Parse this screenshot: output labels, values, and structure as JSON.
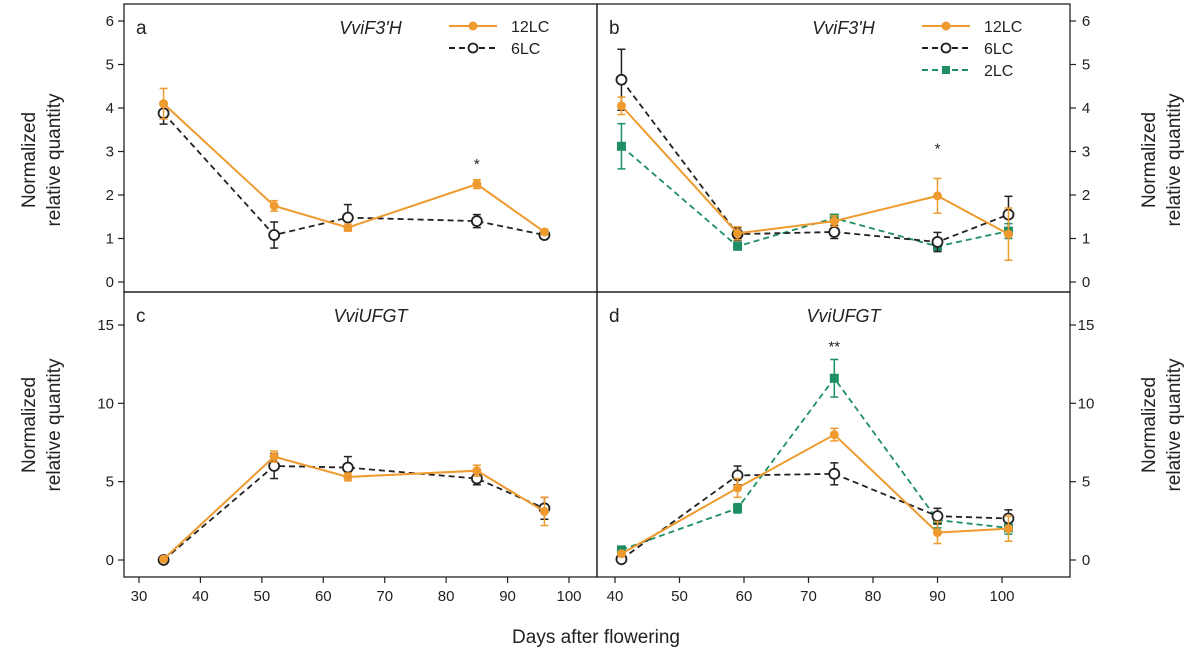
{
  "figure": {
    "xlabel": "Days after flowering",
    "ylabel_line1": "Normalized",
    "ylabel_line2": "relative quantity"
  },
  "colors": {
    "12LC": "#EE9A2E",
    "6LC": "#222222",
    "2LC": "#1E8F63"
  },
  "chart_data": [
    {
      "panel": "a",
      "type": "line",
      "title": "VviF3'H",
      "xlim": [
        30,
        104
      ],
      "ylim": [
        0,
        6
      ],
      "xticks": [],
      "yticks": [
        0,
        1,
        2,
        3,
        4,
        5,
        6
      ],
      "legend": [
        "12LC",
        "6LC"
      ],
      "series": [
        {
          "name": "12LC",
          "x": [
            34,
            52,
            64,
            85,
            96
          ],
          "y": [
            4.1,
            1.75,
            1.25,
            2.25,
            1.15
          ],
          "err": [
            0.35,
            0.12,
            0.08,
            0.1,
            0.06
          ]
        },
        {
          "name": "6LC",
          "x": [
            34,
            52,
            64,
            85,
            96
          ],
          "y": [
            3.88,
            1.08,
            1.48,
            1.4,
            1.08
          ],
          "err": [
            0.25,
            0.3,
            0.3,
            0.15,
            0.06
          ]
        }
      ],
      "annotations": [
        {
          "text": "*",
          "x": 85,
          "y": 2.6
        }
      ]
    },
    {
      "panel": "b",
      "type": "line",
      "title": "VviF3'H",
      "xlim": [
        37,
        106
      ],
      "ylim": [
        0,
        6
      ],
      "xticks": [],
      "yticks": [
        0,
        1,
        2,
        3,
        4,
        5,
        6
      ],
      "legend": [
        "12LC",
        "6LC",
        "2LC"
      ],
      "series": [
        {
          "name": "12LC",
          "x": [
            41,
            59,
            74,
            90,
            101
          ],
          "y": [
            4.05,
            1.12,
            1.4,
            1.98,
            1.1
          ],
          "err": [
            0.2,
            0.15,
            0.12,
            0.4,
            0.6
          ]
        },
        {
          "name": "6LC",
          "x": [
            41,
            59,
            74,
            90,
            101
          ],
          "y": [
            4.65,
            1.1,
            1.15,
            0.92,
            1.55
          ],
          "err": [
            0.7,
            0.15,
            0.15,
            0.22,
            0.42
          ]
        },
        {
          "name": "2LC",
          "x": [
            41,
            59,
            74,
            90,
            101
          ],
          "y": [
            3.12,
            0.82,
            1.47,
            0.82,
            1.17
          ],
          "err": [
            0.52,
            0.07,
            0.06,
            0.12,
            0.17
          ]
        }
      ],
      "annotations": [
        {
          "text": "*",
          "x": 90,
          "y": 2.95
        }
      ]
    },
    {
      "panel": "c",
      "type": "line",
      "title": "VviUFGT",
      "xlim": [
        30,
        104
      ],
      "ylim": [
        0,
        17
      ],
      "xticks": [
        30,
        40,
        50,
        60,
        70,
        80,
        90,
        100
      ],
      "yticks": [
        0,
        5,
        10,
        15
      ],
      "legend": [],
      "series": [
        {
          "name": "12LC",
          "x": [
            34,
            52,
            64,
            85,
            96
          ],
          "y": [
            0.05,
            6.6,
            5.3,
            5.7,
            3.1
          ],
          "err": [
            0.05,
            0.35,
            0.25,
            0.35,
            0.9
          ]
        },
        {
          "name": "6LC",
          "x": [
            34,
            52,
            64,
            85,
            96
          ],
          "y": [
            0.0,
            6.0,
            5.9,
            5.2,
            3.3
          ],
          "err": [
            0.05,
            0.8,
            0.7,
            0.4,
            0.7
          ]
        }
      ],
      "annotations": []
    },
    {
      "panel": "d",
      "type": "line",
      "title": "VviUFGT",
      "xlim": [
        37,
        106
      ],
      "ylim": [
        0,
        17
      ],
      "xticks": [
        40,
        50,
        60,
        70,
        80,
        90,
        100
      ],
      "yticks": [
        0,
        5,
        10,
        15
      ],
      "legend": [],
      "series": [
        {
          "name": "12LC",
          "x": [
            41,
            59,
            74,
            90,
            101
          ],
          "y": [
            0.4,
            4.6,
            8.0,
            1.75,
            2.0
          ],
          "err": [
            0.1,
            0.6,
            0.4,
            0.7,
            0.8
          ]
        },
        {
          "name": "6LC",
          "x": [
            41,
            59,
            74,
            90,
            101
          ],
          "y": [
            0.05,
            5.4,
            5.5,
            2.8,
            2.65
          ],
          "err": [
            0.05,
            0.6,
            0.7,
            0.5,
            0.55
          ]
        },
        {
          "name": "2LC",
          "x": [
            41,
            59,
            74,
            90,
            101
          ],
          "y": [
            0.65,
            3.3,
            11.6,
            2.55,
            2.05
          ],
          "err": [
            0.1,
            0.3,
            1.2,
            0.5,
            0.4
          ]
        }
      ],
      "annotations": [
        {
          "text": "**",
          "x": 74,
          "y": 13.3
        }
      ]
    }
  ]
}
